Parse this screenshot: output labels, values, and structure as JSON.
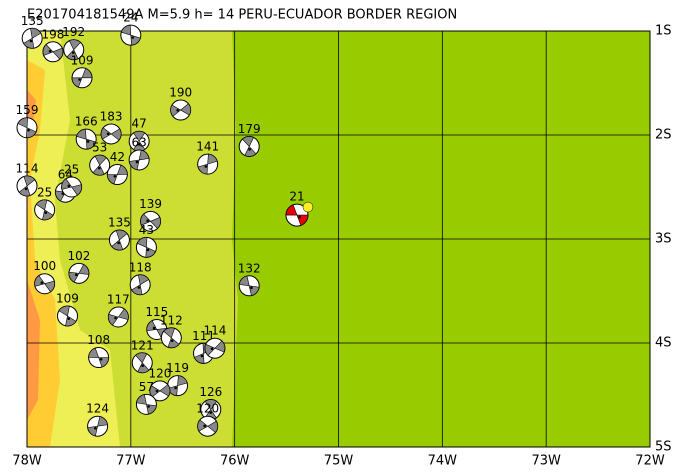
{
  "title": "E201704181549A M=5.9 h= 14 PERU-ECUADOR BORDER REGION",
  "x_ticks": [
    {
      "value": -78,
      "label": "78W"
    },
    {
      "value": -77,
      "label": "77W"
    },
    {
      "value": -76,
      "label": "76W"
    },
    {
      "value": -75,
      "label": "75W"
    },
    {
      "value": -74,
      "label": "74W"
    },
    {
      "value": -73,
      "label": "73W"
    },
    {
      "value": -72,
      "label": "72W"
    }
  ],
  "y_ticks": [
    {
      "value": -1,
      "label": "1S"
    },
    {
      "value": -2,
      "label": "2S"
    },
    {
      "value": -3,
      "label": "3S"
    },
    {
      "value": -4,
      "label": "4S"
    },
    {
      "value": -5,
      "label": "5S"
    }
  ],
  "events": [
    {
      "label": "21",
      "lon": -75.4,
      "lat": -2.77,
      "main": true
    },
    {
      "label": "179",
      "lon": -75.86,
      "lat": -2.11
    },
    {
      "label": "141",
      "lon": -76.26,
      "lat": -2.28
    },
    {
      "label": "190",
      "lon": -76.52,
      "lat": -1.76
    },
    {
      "label": "132",
      "lon": -75.86,
      "lat": -3.45
    },
    {
      "label": "47",
      "lon": -76.92,
      "lat": -2.06
    },
    {
      "label": "63",
      "lon": -76.92,
      "lat": -2.24
    },
    {
      "label": "183",
      "lon": -77.19,
      "lat": -1.99
    },
    {
      "label": "166",
      "lon": -77.43,
      "lat": -2.04
    },
    {
      "label": "53",
      "lon": -77.3,
      "lat": -2.29
    },
    {
      "label": "42",
      "lon": -77.13,
      "lat": -2.38
    },
    {
      "label": "139",
      "lon": -76.81,
      "lat": -2.83
    },
    {
      "label": "43",
      "lon": -76.85,
      "lat": -3.08
    },
    {
      "label": "135",
      "lon": -77.11,
      "lat": -3.01
    },
    {
      "label": "102",
      "lon": -77.5,
      "lat": -3.33
    },
    {
      "label": "100",
      "lon": -77.83,
      "lat": -3.43
    },
    {
      "label": "109",
      "lon": -77.61,
      "lat": -3.74
    },
    {
      "label": "118",
      "lon": -76.91,
      "lat": -3.44
    },
    {
      "label": "117",
      "lon": -77.12,
      "lat": -3.75
    },
    {
      "label": "115",
      "lon": -76.75,
      "lat": -3.87
    },
    {
      "label": "112",
      "lon": -76.61,
      "lat": -3.95
    },
    {
      "label": "111",
      "lon": -76.3,
      "lat": -4.1
    },
    {
      "label": "114",
      "lon": -76.19,
      "lat": -4.05
    },
    {
      "label": "108",
      "lon": -77.31,
      "lat": -4.14
    },
    {
      "label": "121",
      "lon": -76.89,
      "lat": -4.19
    },
    {
      "label": "119",
      "lon": -76.55,
      "lat": -4.41
    },
    {
      "label": "120",
      "lon": -76.72,
      "lat": -4.46
    },
    {
      "label": "57",
      "lon": -76.85,
      "lat": -4.59
    },
    {
      "label": "126",
      "lon": -76.23,
      "lat": -4.64
    },
    {
      "label": "124",
      "lon": -77.32,
      "lat": -4.8
    },
    {
      "label": "120",
      "lon": -76.26,
      "lat": -4.8
    },
    {
      "label": "24",
      "lon": -77.0,
      "lat": -1.04
    },
    {
      "label": "192",
      "lon": -77.55,
      "lat": -1.18
    },
    {
      "label": "109",
      "lon": -77.47,
      "lat": -1.45
    },
    {
      "label": "198",
      "lon": -77.75,
      "lat": -1.2
    },
    {
      "label": "159",
      "lon": -78.0,
      "lat": -1.93
    },
    {
      "label": "114",
      "lon": -78.0,
      "lat": -2.49
    },
    {
      "label": "64",
      "lon": -77.63,
      "lat": -2.55
    },
    {
      "label": "25",
      "lon": -77.57,
      "lat": -2.5
    },
    {
      "label": "25",
      "lon": -77.83,
      "lat": -2.72
    },
    {
      "label": "135",
      "lon": -77.95,
      "lat": -1.07
    }
  ]
}
